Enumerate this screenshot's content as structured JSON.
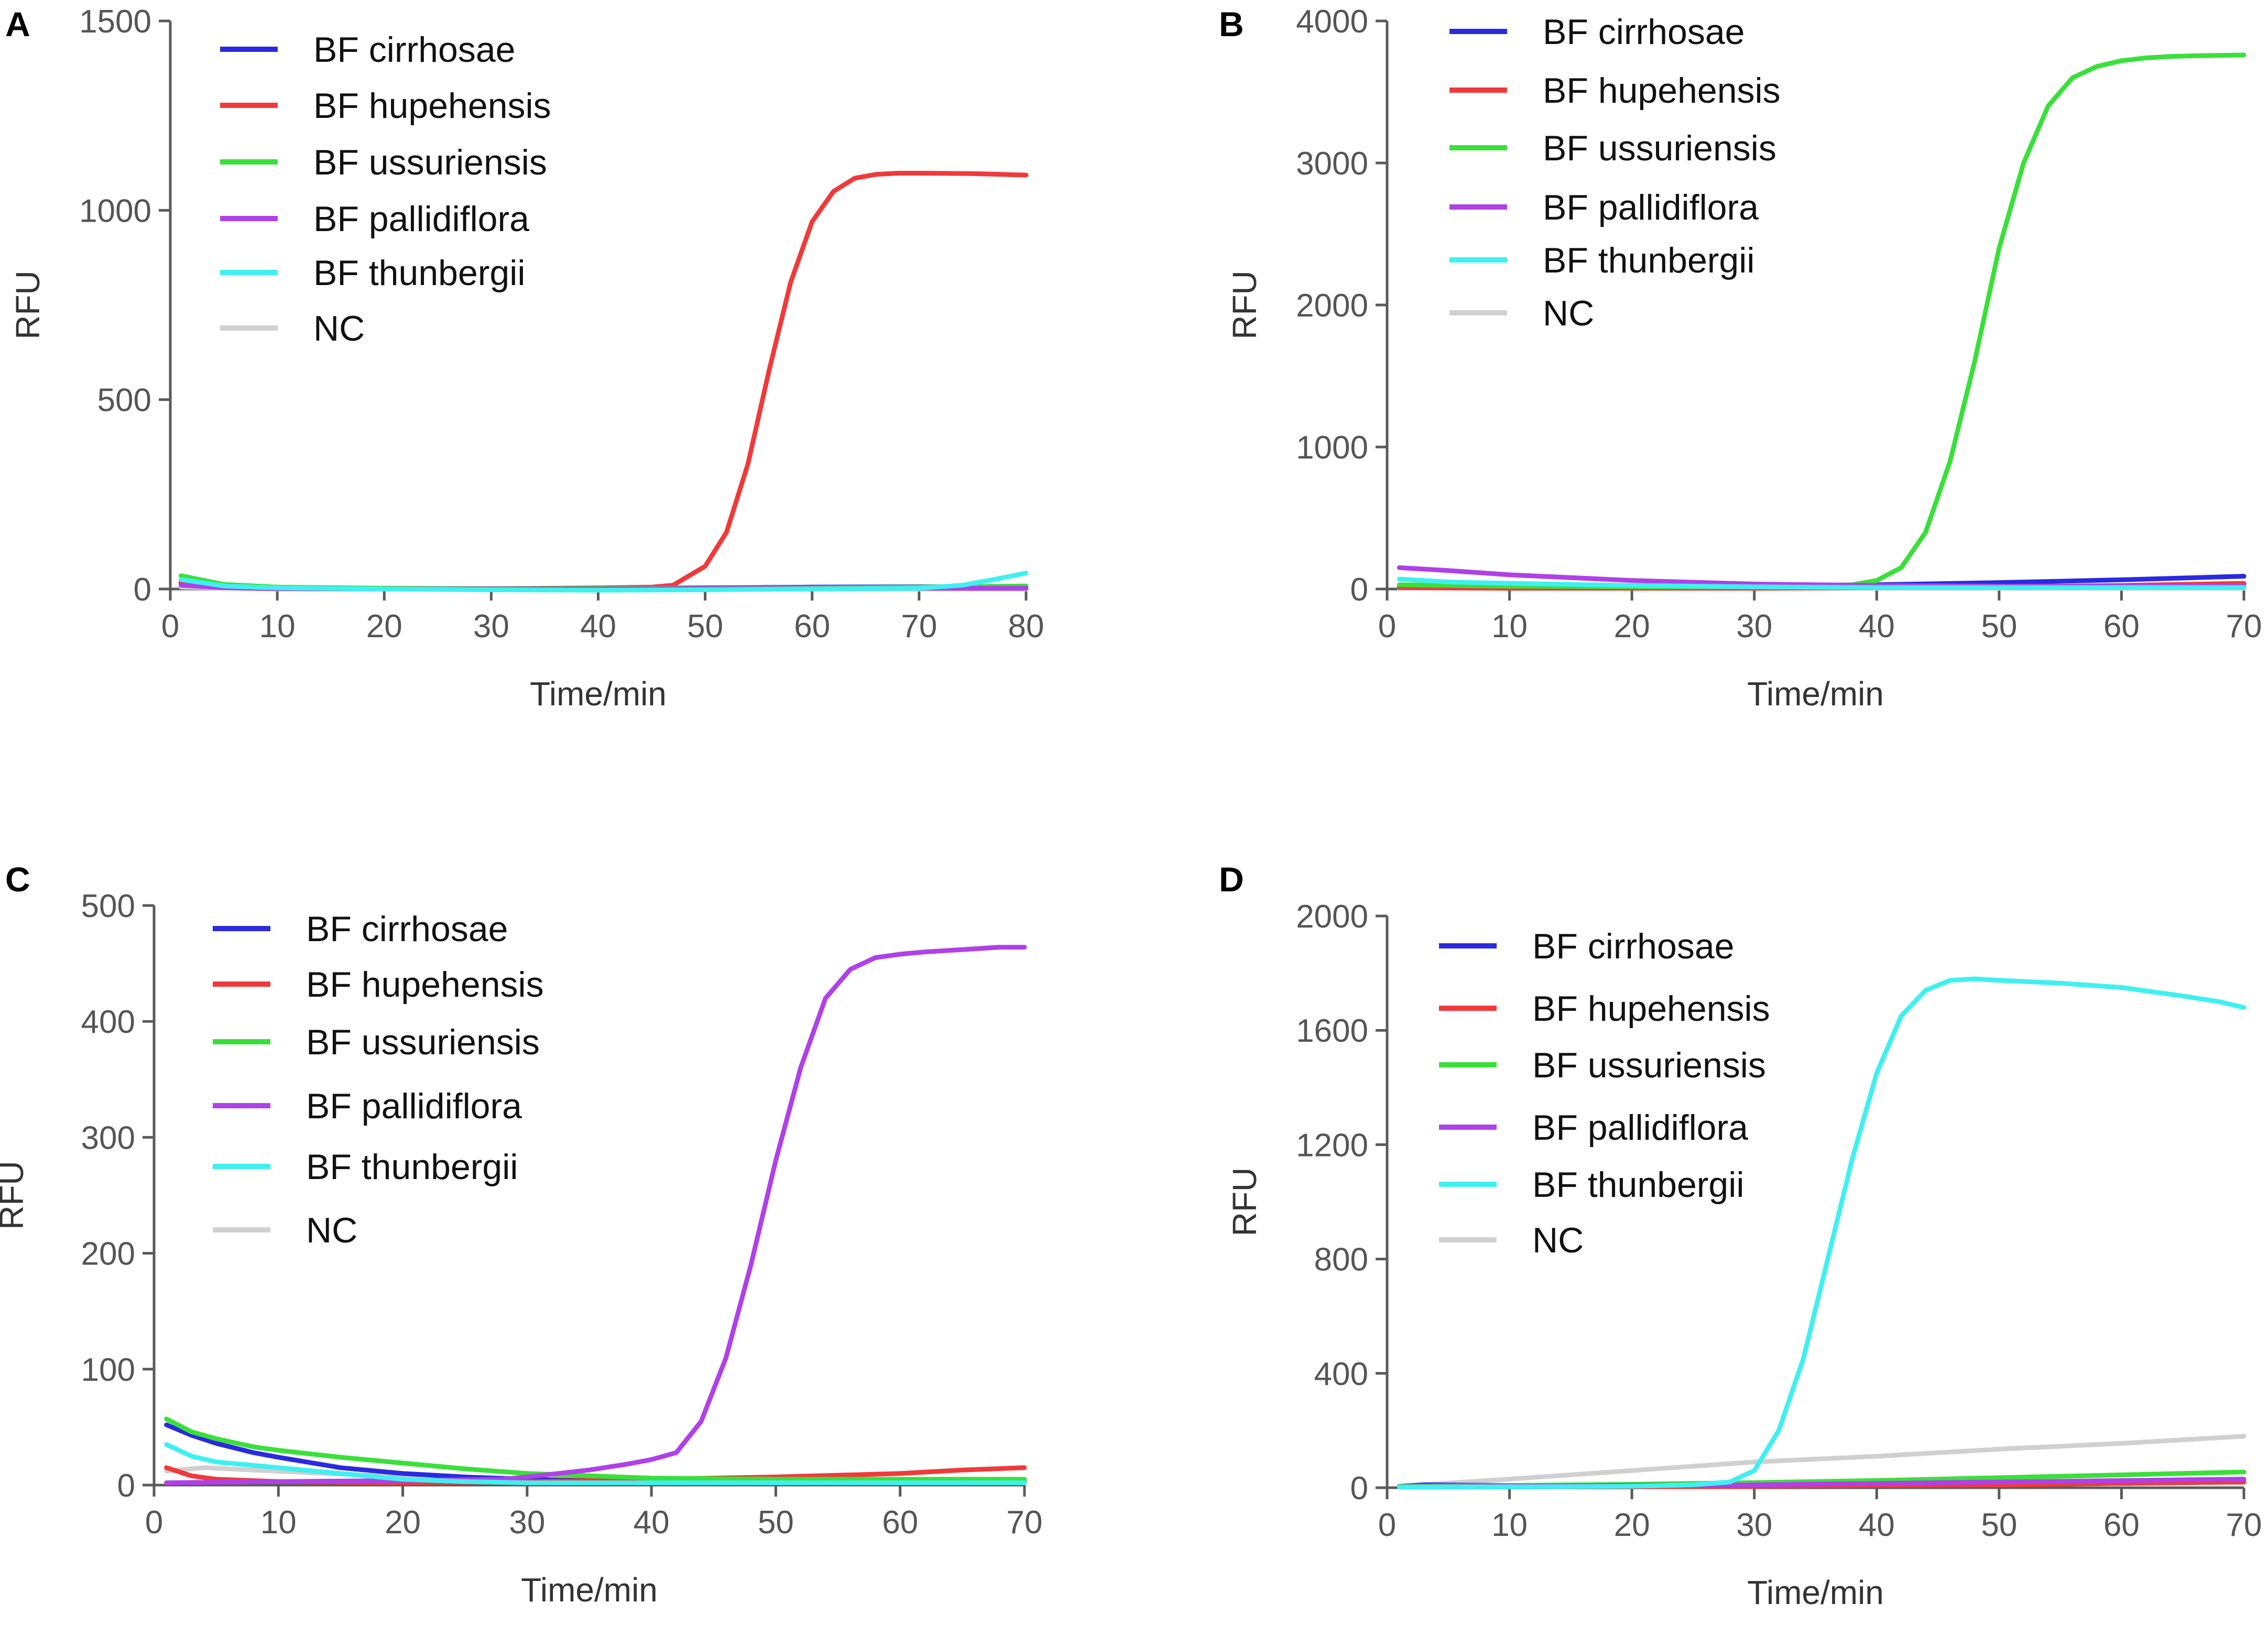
{
  "figure": {
    "panel_letters": [
      "A",
      "B",
      "C",
      "D"
    ]
  },
  "colors": {
    "BF cirrhosae": "#2a2ae0",
    "BF hupehensis": "#f03a3a",
    "BF ussuriensis": "#3ae03a",
    "BF pallidiflora": "#b040e8",
    "BF thunbergii": "#40f0f0",
    "NC": "#d0d0d0"
  },
  "chart_data": [
    {
      "type": "line",
      "panel": "A",
      "title": "",
      "xlabel": "Time/min",
      "ylabel": "RFU",
      "xlim": [
        0,
        80
      ],
      "ylim": [
        0,
        1500
      ],
      "xticks": [
        0,
        10,
        20,
        30,
        40,
        50,
        60,
        70,
        80
      ],
      "yticks": [
        0,
        500,
        1000,
        1500
      ],
      "legend": [
        "BF cirrhosae",
        "BF hupehensis",
        "BF ussuriensis",
        "BF pallidiflora",
        "BF thunbergii",
        "NC"
      ],
      "legend_position": "top-left",
      "series": [
        {
          "name": "BF cirrhosae",
          "x": [
            1,
            5,
            10,
            20,
            30,
            40,
            50,
            60,
            70,
            80
          ],
          "values": [
            15,
            5,
            2,
            0,
            0,
            2,
            3,
            5,
            6,
            5
          ]
        },
        {
          "name": "BF hupehensis",
          "x": [
            1,
            5,
            10,
            20,
            30,
            40,
            45,
            47,
            50,
            52,
            54,
            56,
            58,
            60,
            62,
            64,
            66,
            68,
            70,
            75,
            80
          ],
          "values": [
            20,
            8,
            4,
            2,
            1,
            3,
            5,
            10,
            60,
            150,
            330,
            580,
            810,
            970,
            1050,
            1085,
            1095,
            1098,
            1098,
            1097,
            1093
          ]
        },
        {
          "name": "BF ussuriensis",
          "x": [
            1,
            5,
            10,
            20,
            30,
            40,
            50,
            60,
            70,
            80
          ],
          "values": [
            35,
            12,
            5,
            2,
            1,
            2,
            2,
            3,
            5,
            8
          ]
        },
        {
          "name": "BF pallidiflora",
          "x": [
            1,
            5,
            10,
            20,
            30,
            40,
            50,
            60,
            70,
            80
          ],
          "values": [
            10,
            3,
            1,
            0,
            0,
            0,
            1,
            1,
            2,
            2
          ]
        },
        {
          "name": "BF thunbergii",
          "x": [
            1,
            5,
            10,
            20,
            30,
            40,
            50,
            60,
            70,
            74,
            77,
            80
          ],
          "values": [
            25,
            8,
            3,
            0,
            -2,
            -3,
            -2,
            0,
            2,
            10,
            25,
            42
          ]
        },
        {
          "name": "NC",
          "x": [
            1,
            10,
            20,
            30,
            40,
            50,
            60,
            70,
            80
          ],
          "values": [
            5,
            0,
            0,
            0,
            0,
            0,
            0,
            0,
            0
          ]
        }
      ]
    },
    {
      "type": "line",
      "panel": "B",
      "title": "",
      "xlabel": "Time/min",
      "ylabel": "RFU",
      "xlim": [
        0,
        70
      ],
      "ylim": [
        0,
        4000
      ],
      "xticks": [
        0,
        10,
        20,
        30,
        40,
        50,
        60,
        70
      ],
      "yticks": [
        0,
        1000,
        2000,
        3000,
        4000
      ],
      "legend": [
        "BF cirrhosae",
        "BF hupehensis",
        "BF ussuriensis",
        "BF pallidiflora",
        "BF thunbergii",
        "NC"
      ],
      "legend_position": "top-left",
      "series": [
        {
          "name": "BF cirrhosae",
          "x": [
            1,
            10,
            20,
            30,
            40,
            50,
            60,
            70
          ],
          "values": [
            20,
            15,
            15,
            20,
            30,
            45,
            65,
            90
          ]
        },
        {
          "name": "BF hupehensis",
          "x": [
            1,
            10,
            20,
            30,
            40,
            50,
            60,
            70
          ],
          "values": [
            10,
            5,
            5,
            5,
            10,
            15,
            25,
            40
          ]
        },
        {
          "name": "BF ussuriensis",
          "x": [
            1,
            10,
            20,
            30,
            38,
            40,
            42,
            44,
            46,
            48,
            50,
            52,
            54,
            56,
            58,
            60,
            62,
            64,
            66,
            70
          ],
          "values": [
            30,
            20,
            15,
            15,
            30,
            60,
            150,
            400,
            900,
            1600,
            2400,
            3000,
            3400,
            3600,
            3680,
            3720,
            3740,
            3750,
            3755,
            3760
          ]
        },
        {
          "name": "BF pallidiflora",
          "x": [
            1,
            5,
            10,
            20,
            30,
            40,
            50,
            60,
            70
          ],
          "values": [
            150,
            130,
            100,
            60,
            35,
            25,
            20,
            20,
            20
          ]
        },
        {
          "name": "BF thunbergii",
          "x": [
            1,
            5,
            10,
            20,
            30,
            40,
            50,
            60,
            70
          ],
          "values": [
            70,
            50,
            40,
            25,
            15,
            10,
            10,
            10,
            10
          ]
        },
        {
          "name": "NC",
          "x": [
            1,
            10,
            20,
            30,
            40,
            50,
            60,
            70
          ],
          "values": [
            5,
            5,
            5,
            5,
            5,
            5,
            5,
            5
          ]
        }
      ]
    },
    {
      "type": "line",
      "panel": "C",
      "title": "",
      "xlabel": "Time/min",
      "ylabel": "RFU",
      "xlim": [
        0,
        70
      ],
      "ylim": [
        0,
        500
      ],
      "xticks": [
        0,
        10,
        20,
        30,
        40,
        50,
        60,
        70
      ],
      "yticks": [
        0,
        100,
        200,
        300,
        400,
        500
      ],
      "legend": [
        "BF cirrhosae",
        "BF hupehensis",
        "BF ussuriensis",
        "BF pallidiflora",
        "BF thunbergii",
        "NC"
      ],
      "legend_position": "top-left",
      "series": [
        {
          "name": "BF cirrhosae",
          "x": [
            1,
            3,
            5,
            8,
            10,
            15,
            20,
            25,
            30,
            40,
            50,
            60,
            70
          ],
          "values": [
            52,
            43,
            36,
            28,
            24,
            15,
            10,
            7,
            5,
            3,
            2,
            2,
            3
          ]
        },
        {
          "name": "BF hupehensis",
          "x": [
            1,
            3,
            5,
            10,
            20,
            30,
            40,
            50,
            60,
            65,
            70
          ],
          "values": [
            15,
            8,
            5,
            3,
            2,
            3,
            5,
            7,
            10,
            13,
            15
          ]
        },
        {
          "name": "BF ussuriensis",
          "x": [
            1,
            3,
            5,
            8,
            10,
            15,
            20,
            25,
            30,
            35,
            40,
            50,
            60,
            70
          ],
          "values": [
            57,
            46,
            40,
            33,
            30,
            24,
            19,
            14,
            10,
            8,
            6,
            5,
            5,
            5
          ]
        },
        {
          "name": "BF pallidiflora",
          "x": [
            1,
            10,
            20,
            28,
            30,
            35,
            38,
            40,
            42,
            44,
            46,
            48,
            50,
            52,
            54,
            56,
            58,
            60,
            62,
            65,
            68,
            70
          ],
          "values": [
            2,
            3,
            4,
            5,
            7,
            13,
            18,
            22,
            28,
            55,
            110,
            190,
            280,
            360,
            420,
            445,
            455,
            458,
            460,
            462,
            464,
            464
          ]
        },
        {
          "name": "BF thunbergii",
          "x": [
            1,
            3,
            5,
            10,
            15,
            20,
            25,
            30,
            40,
            50,
            60,
            70
          ],
          "values": [
            35,
            25,
            20,
            15,
            10,
            5,
            3,
            2,
            2,
            2,
            2,
            2
          ]
        },
        {
          "name": "NC",
          "x": [
            1,
            4,
            10,
            20,
            30,
            40,
            50,
            60,
            70
          ],
          "values": [
            12,
            15,
            12,
            7,
            4,
            3,
            3,
            3,
            3
          ]
        }
      ]
    },
    {
      "type": "line",
      "panel": "D",
      "title": "",
      "xlabel": "Time/min",
      "ylabel": "RFU",
      "xlim": [
        0,
        70
      ],
      "ylim": [
        0,
        2000
      ],
      "xticks": [
        0,
        10,
        20,
        30,
        40,
        50,
        60,
        70
      ],
      "yticks": [
        0,
        400,
        800,
        1200,
        1600,
        2000
      ],
      "legend": [
        "BF cirrhosae",
        "BF hupehensis",
        "BF ussuriensis",
        "BF pallidiflora",
        "BF thunbergii",
        "NC"
      ],
      "legend_position": "top-left",
      "series": [
        {
          "name": "BF cirrhosae",
          "x": [
            1,
            3,
            10,
            20,
            30,
            40,
            50,
            60,
            70
          ],
          "values": [
            5,
            10,
            8,
            6,
            8,
            10,
            12,
            15,
            20
          ]
        },
        {
          "name": "BF hupehensis",
          "x": [
            1,
            10,
            20,
            30,
            40,
            50,
            60,
            70
          ],
          "values": [
            3,
            3,
            3,
            5,
            8,
            10,
            15,
            20
          ]
        },
        {
          "name": "BF ussuriensis",
          "x": [
            1,
            10,
            20,
            30,
            40,
            50,
            60,
            70
          ],
          "values": [
            5,
            8,
            12,
            18,
            25,
            35,
            45,
            55
          ]
        },
        {
          "name": "BF pallidiflora",
          "x": [
            1,
            10,
            20,
            30,
            40,
            50,
            60,
            70
          ],
          "values": [
            3,
            5,
            8,
            10,
            15,
            20,
            25,
            30
          ]
        },
        {
          "name": "BF thunbergii",
          "x": [
            1,
            10,
            20,
            25,
            28,
            30,
            32,
            34,
            36,
            38,
            40,
            42,
            44,
            46,
            48,
            50,
            55,
            60,
            65,
            68,
            70
          ],
          "values": [
            2,
            3,
            5,
            10,
            20,
            60,
            200,
            450,
            800,
            1150,
            1450,
            1650,
            1740,
            1775,
            1780,
            1775,
            1765,
            1750,
            1720,
            1700,
            1680
          ]
        },
        {
          "name": "NC",
          "x": [
            1,
            10,
            20,
            30,
            40,
            50,
            60,
            70
          ],
          "values": [
            5,
            30,
            60,
            90,
            110,
            135,
            155,
            180
          ]
        }
      ]
    }
  ]
}
